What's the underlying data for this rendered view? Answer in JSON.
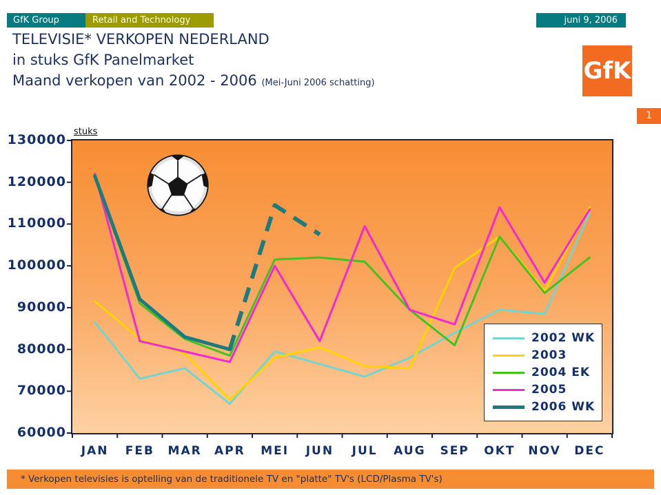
{
  "header": {
    "group": "GfK Group",
    "division": "Retail and Technology",
    "date": "juni 9, 2006"
  },
  "title": {
    "line1": "TELEVISIE* VERKOPEN NEDERLAND",
    "line2": "in stuks GfK Panelmarket",
    "line3": "Maand verkopen van 2002 - 2006",
    "note": "(Mei-Juni 2006 schatting)"
  },
  "logo": {
    "text": "GfK"
  },
  "page_number": "1",
  "chart_data": {
    "type": "line",
    "title": "Maand verkopen van 2002 - 2006",
    "unit_label": "stuks",
    "categories": [
      "JAN",
      "FEB",
      "MAR",
      "APR",
      "MEI",
      "JUN",
      "JUL",
      "AUG",
      "SEP",
      "OKT",
      "NOV",
      "DEC"
    ],
    "ylim": [
      60000,
      130000
    ],
    "ytick_step": 10000,
    "ytick_labels": [
      "130000",
      "120000",
      "110000",
      "100000",
      "90000",
      "80000",
      "70000",
      "60000"
    ],
    "grid": false,
    "legend_position": "inside-bottom-right",
    "plot_background": [
      "#F78D33",
      "#FDD1A2"
    ],
    "series": [
      {
        "name": "2002 WK",
        "color": "#74D4CF",
        "width": 3,
        "values": [
          86500,
          73000,
          75500,
          67000,
          79500,
          76500,
          73500,
          78000,
          84000,
          89500,
          88500,
          112500
        ]
      },
      {
        "name": "2003",
        "color": "#FFD400",
        "width": 3,
        "values": [
          91500,
          82500,
          79000,
          68000,
          78000,
          80500,
          76000,
          75500,
          99500,
          107000,
          94000,
          114000
        ]
      },
      {
        "name": "2004 EK",
        "color": "#43C222",
        "width": 3,
        "values": [
          121000,
          91000,
          82500,
          78500,
          101500,
          102000,
          101000,
          89500,
          81000,
          107000,
          93500,
          102000
        ]
      },
      {
        "name": "2005",
        "color": "#F02AD0",
        "width": 3,
        "values": [
          122000,
          82000,
          79500,
          77000,
          100000,
          82000,
          109500,
          89500,
          86000,
          114000,
          96000,
          113500
        ]
      },
      {
        "name": "2006 WK",
        "color": "#1E7B7D",
        "width": 5,
        "dash_from_index": 3,
        "values": [
          121500,
          92000,
          83000,
          80000,
          114500,
          107500
        ]
      }
    ]
  },
  "footnote": "* Verkopen televisies is optelling van de traditionele TV en \"platte\" TV's (LCD/Plasma TV's)",
  "colors": {
    "teal": "#067C80",
    "olive": "#9C9C00",
    "orange_brand": "#F26B21",
    "orange_chart": "#F78D33",
    "navy_text": "#14306A"
  }
}
